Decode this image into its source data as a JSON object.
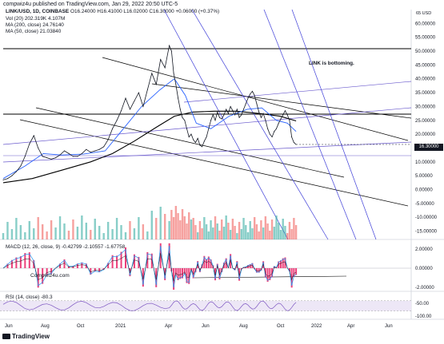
{
  "header": {
    "text": "compwiz4u published on TradingView.com, Jan 29, 2022 20:50 UTC-5"
  },
  "legend": {
    "symbol": "LINK/USD, 1D, COINBASE",
    "ohlc": "O16.24000  H16.41000  L16.02000  C16.30000  +0.06000 (+0.37%)",
    "vol_label": "Vol (20)",
    "vol_values": "202.319K  4.107M",
    "ma200_label": "MA (200, close)",
    "ma200_value": "24.76140",
    "ma50_label": "MA (50, close)",
    "ma50_value": "21.03840",
    "macd_label": "MACD (12, 26, close, 9)",
    "macd_values": "-0.42799  -2.10557  -1.67758",
    "rsi_label": "RSI (14, close)",
    "rsi_value": "-80.3"
  },
  "annotation": "LINK is bottoming.",
  "watermark": "Compwiz4u.com",
  "footer": "TradingView",
  "scale_marker": "65 USD",
  "last_price": "16.30000",
  "colors": {
    "price_line": "#131722",
    "ma200": "#000000",
    "ma50": "#2962ff",
    "trend_black": "#000000",
    "trend_blue": "#3f3fd8",
    "trend_purple": "#6a5acd",
    "vol_up": "#26a69a",
    "vol_down": "#ef5350",
    "macd_hist": "#e91e63",
    "macd_line": "#2196f3",
    "signal_line": "#131722",
    "rsi_line": "#7e57c2",
    "rsi_band": "#ede7f6"
  },
  "chart_data": {
    "type": "line",
    "title": "LINK/USD, 1D, COINBASE",
    "x_ticks": [
      "Jun",
      "Aug",
      "Oct",
      "2021",
      "Apr",
      "Jun",
      "Aug",
      "Oct",
      "2022",
      "Apr",
      "Jun"
    ],
    "y_ticks": [
      60,
      55,
      50,
      45,
      40,
      35,
      30,
      25,
      20,
      15,
      10,
      5,
      0,
      -5,
      -10,
      -15
    ],
    "y_tick_labels": [
      "60.00000",
      "55.00000",
      "50.00000",
      "45.00000",
      "40.00000",
      "35.00000",
      "30.00000",
      "25.00000",
      "20.00000",
      "15.00000",
      "10.00000",
      "5.00000",
      "0.00000",
      "-5.00000",
      "-10.00000",
      "-15.00000"
    ],
    "ylim": [
      -18,
      65
    ],
    "macd_ticks": [
      2,
      0,
      -2
    ],
    "macd_tick_labels": [
      "2.00000",
      "0.00000",
      "-2.00000"
    ],
    "rsi_ticks": [
      -50,
      -100
    ],
    "rsi_tick_labels": [
      "-50.00",
      "-100.00"
    ],
    "price_series": {
      "name": "LINK/USD",
      "points": [
        [
          0,
          3.5
        ],
        [
          6,
          4.0
        ],
        [
          12,
          5.0
        ],
        [
          18,
          6.5
        ],
        [
          24,
          8.5
        ],
        [
          30,
          12.0
        ],
        [
          36,
          16.5
        ],
        [
          42,
          19.5
        ],
        [
          48,
          15.0
        ],
        [
          54,
          12.0
        ],
        [
          60,
          11.5
        ],
        [
          66,
          11.0
        ],
        [
          72,
          11.5
        ],
        [
          78,
          12.5
        ],
        [
          84,
          14.0
        ],
        [
          90,
          13.0
        ],
        [
          96,
          12.0
        ],
        [
          102,
          12.0
        ],
        [
          108,
          13.0
        ],
        [
          114,
          14.5
        ],
        [
          120,
          13.5
        ],
        [
          126,
          14.0
        ],
        [
          132,
          14.5
        ],
        [
          138,
          15.5
        ],
        [
          144,
          18.0
        ],
        [
          150,
          22.0
        ],
        [
          156,
          25.0
        ],
        [
          162,
          28.5
        ],
        [
          168,
          33.0
        ],
        [
          174,
          29.0
        ],
        [
          180,
          32.0
        ],
        [
          186,
          35.0
        ],
        [
          192,
          30.0
        ],
        [
          198,
          36.0
        ],
        [
          204,
          42.0
        ],
        [
          210,
          38.0
        ],
        [
          216,
          47.0
        ],
        [
          222,
          44.0
        ],
        [
          228,
          52.0
        ],
        [
          231,
          50.0
        ],
        [
          234,
          42.0
        ],
        [
          237,
          38.0
        ],
        [
          240,
          33.0
        ],
        [
          243,
          29.0
        ],
        [
          246,
          26.0
        ],
        [
          249,
          25.0
        ],
        [
          252,
          22.0
        ],
        [
          255,
          19.0
        ],
        [
          258,
          20.0
        ],
        [
          261,
          18.0
        ],
        [
          264,
          17.0
        ],
        [
          267,
          18.5
        ],
        [
          270,
          16.0
        ],
        [
          273,
          15.5
        ],
        [
          276,
          17.5
        ],
        [
          279,
          19.0
        ],
        [
          282,
          22.0
        ],
        [
          285,
          25.0
        ],
        [
          288,
          27.0
        ],
        [
          291,
          25.0
        ],
        [
          294,
          28.0
        ],
        [
          297,
          26.0
        ],
        [
          300,
          25.5
        ],
        [
          303,
          27.0
        ],
        [
          306,
          29.0
        ],
        [
          309,
          27.5
        ],
        [
          312,
          30.0
        ],
        [
          315,
          28.5
        ],
        [
          318,
          27.0
        ],
        [
          321,
          29.0
        ],
        [
          324,
          26.0
        ],
        [
          327,
          27.0
        ],
        [
          330,
          29.0
        ],
        [
          333,
          31.0
        ],
        [
          336,
          33.0
        ],
        [
          339,
          34.5
        ],
        [
          342,
          35.5
        ],
        [
          345,
          34.0
        ],
        [
          348,
          31.0
        ],
        [
          351,
          28.0
        ],
        [
          354,
          26.0
        ],
        [
          357,
          27.5
        ],
        [
          360,
          25.0
        ],
        [
          363,
          22.0
        ],
        [
          366,
          20.0
        ],
        [
          369,
          19.0
        ],
        [
          372,
          21.0
        ],
        [
          375,
          22.0
        ],
        [
          378,
          24.0
        ],
        [
          381,
          25.5
        ],
        [
          384,
          27.0
        ],
        [
          387,
          28.5
        ],
        [
          390,
          27.0
        ],
        [
          393,
          25.0
        ],
        [
          396,
          19.0
        ],
        [
          399,
          17.0
        ],
        [
          402,
          16.3
        ]
      ]
    },
    "ma200_series": {
      "name": "MA (200, close)",
      "points": [
        [
          0,
          2.5
        ],
        [
          40,
          4.0
        ],
        [
          80,
          7.0
        ],
        [
          120,
          10.0
        ],
        [
          150,
          13.0
        ],
        [
          180,
          17.5
        ],
        [
          210,
          22.5
        ],
        [
          235,
          26.5
        ],
        [
          260,
          28.0
        ],
        [
          290,
          28.3
        ],
        [
          320,
          28.3
        ],
        [
          350,
          27.5
        ],
        [
          380,
          26.5
        ],
        [
          402,
          24.8
        ]
      ]
    },
    "ma50_series": {
      "name": "MA (50, close)",
      "points": [
        [
          0,
          4.0
        ],
        [
          30,
          8.5
        ],
        [
          55,
          13.0
        ],
        [
          80,
          12.5
        ],
        [
          110,
          12.8
        ],
        [
          140,
          14.0
        ],
        [
          165,
          22.0
        ],
        [
          190,
          30.0
        ],
        [
          215,
          36.0
        ],
        [
          235,
          40.0
        ],
        [
          250,
          34.0
        ],
        [
          265,
          24.0
        ],
        [
          285,
          22.0
        ],
        [
          310,
          26.5
        ],
        [
          335,
          29.0
        ],
        [
          355,
          29.5
        ],
        [
          375,
          25.0
        ],
        [
          390,
          24.0
        ],
        [
          402,
          21.0
        ]
      ]
    }
  }
}
